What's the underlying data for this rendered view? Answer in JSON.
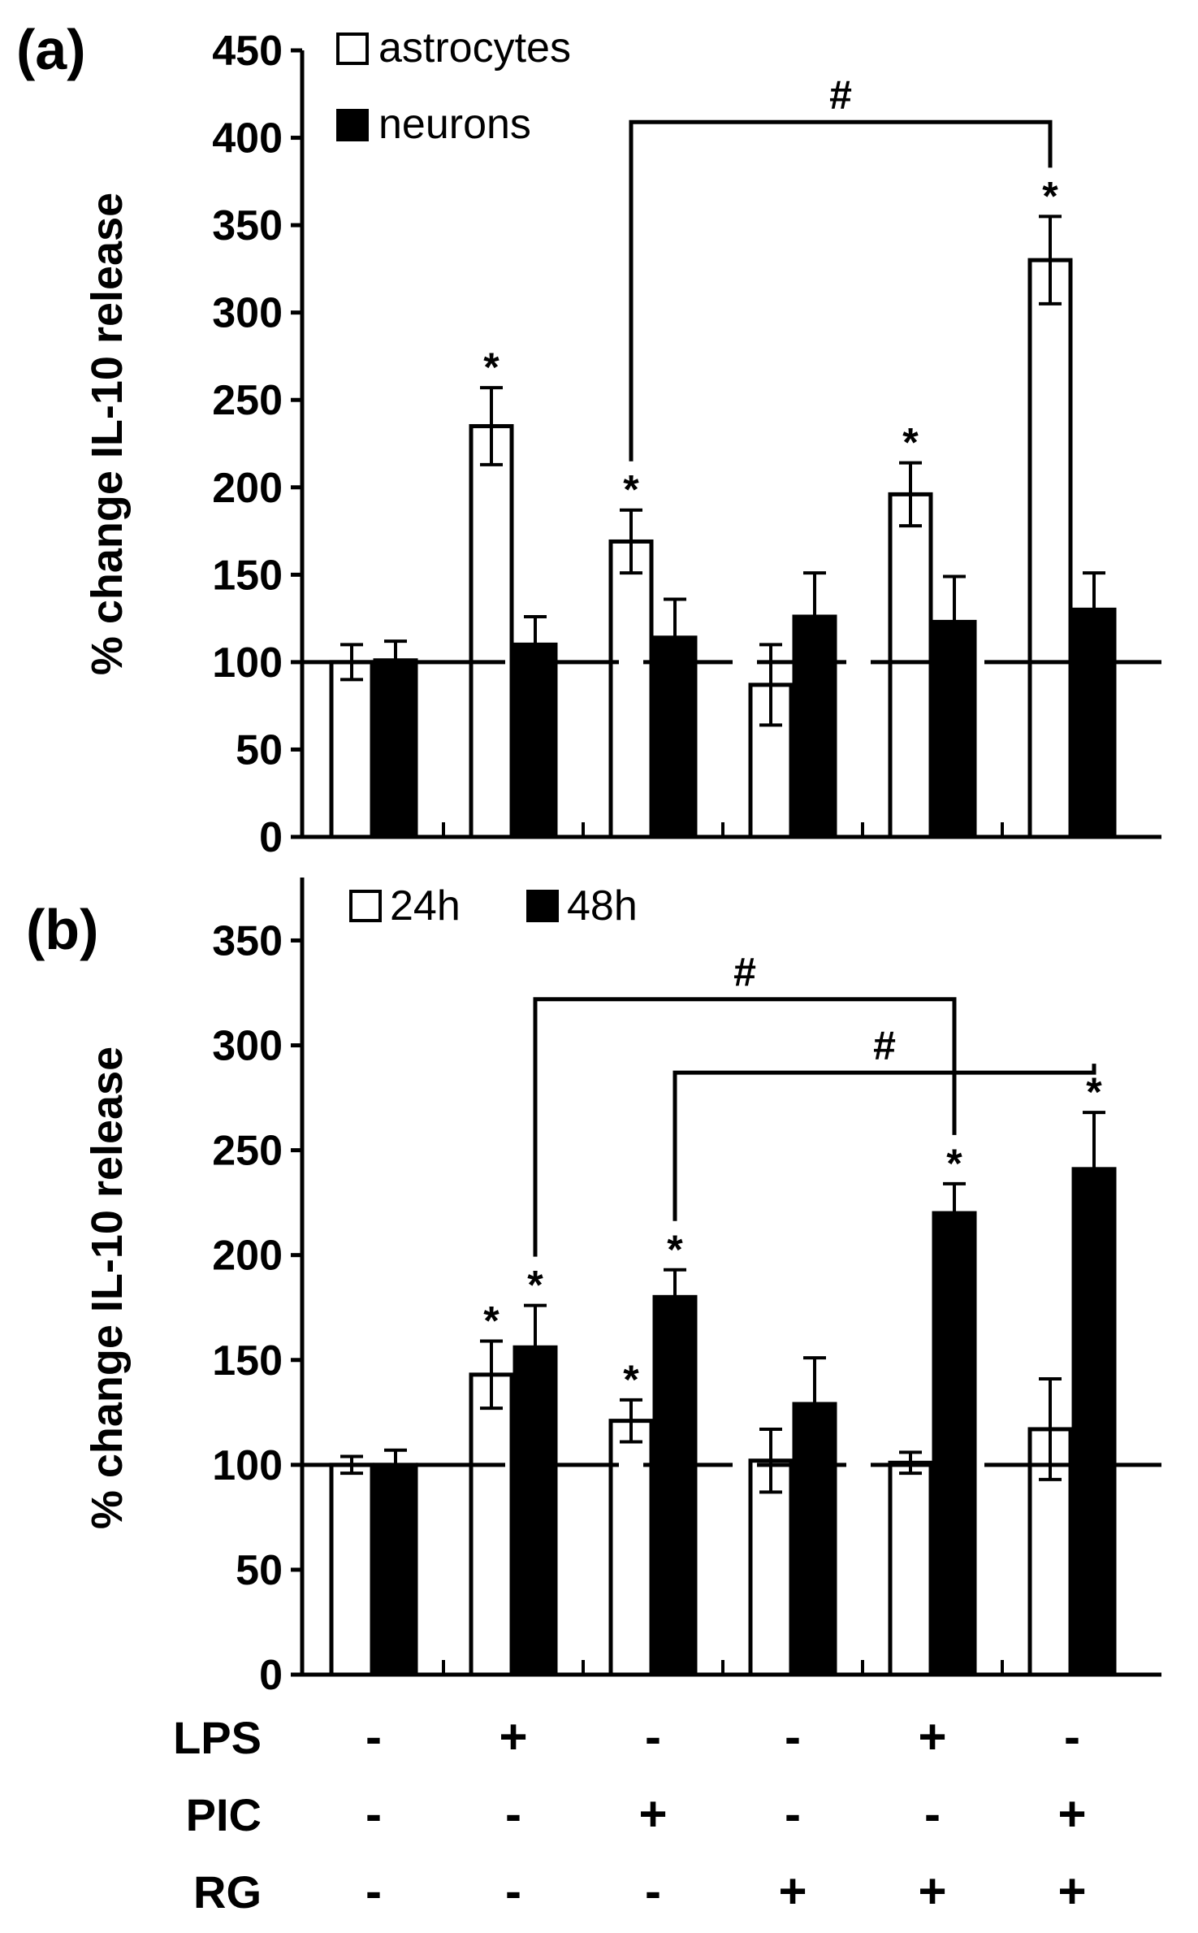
{
  "panels": [
    {
      "id": "a",
      "label": "(a)",
      "ylabel": "% change IL-10 release",
      "legend": [
        {
          "label": "astrocytes",
          "fill": "#ffffff"
        },
        {
          "label": "neurons",
          "fill": "#000000"
        }
      ]
    },
    {
      "id": "b",
      "label": "(b)",
      "ylabel": "% change IL-10 release",
      "legend": [
        {
          "label": "24h",
          "fill": "#ffffff"
        },
        {
          "label": "48h",
          "fill": "#000000"
        }
      ]
    }
  ],
  "conditions": {
    "rows": [
      {
        "label": "LPS",
        "signs": [
          "-",
          "+",
          "-",
          "-",
          "+",
          "-"
        ]
      },
      {
        "label": "PIC",
        "signs": [
          "-",
          "-",
          "+",
          "-",
          "-",
          "+"
        ]
      },
      {
        "label": "RG",
        "signs": [
          "-",
          "-",
          "-",
          "+",
          "+",
          "+"
        ]
      }
    ]
  },
  "chart_data": [
    {
      "panel": "a",
      "type": "bar",
      "title": "",
      "xlabel": "",
      "ylabel": "% change IL-10 release",
      "ylim": [
        0,
        450
      ],
      "yticks": [
        0,
        50,
        100,
        150,
        200,
        250,
        300,
        350,
        400,
        450
      ],
      "grid": false,
      "legend_position": "top-left",
      "reference_line": 100,
      "groups": 6,
      "series": [
        {
          "name": "astrocytes",
          "color": "#ffffff",
          "values": [
            100,
            235,
            169,
            87,
            196,
            330
          ],
          "errors": [
            10,
            22,
            18,
            23,
            18,
            25
          ],
          "sig": [
            "",
            "*",
            "*",
            "",
            "*",
            "*"
          ]
        },
        {
          "name": "neurons",
          "color": "#000000",
          "values": [
            101,
            110,
            114,
            126,
            123,
            130
          ],
          "errors": [
            11,
            16,
            22,
            25,
            26,
            21
          ],
          "sig": [
            "",
            "",
            "",
            "",
            "",
            ""
          ]
        }
      ],
      "brackets": [
        {
          "from": {
            "group": 2,
            "series": 0
          },
          "to": {
            "group": 5,
            "series": 0
          },
          "label": "#",
          "y": 409
        }
      ]
    },
    {
      "panel": "b",
      "type": "bar",
      "title": "",
      "xlabel": "",
      "ylabel": "% change IL-10 release",
      "ylim": [
        0,
        380
      ],
      "yticks": [
        0,
        50,
        100,
        150,
        200,
        250,
        300,
        350
      ],
      "grid": false,
      "legend_position": "top-left",
      "reference_line": 100,
      "groups": 6,
      "series": [
        {
          "name": "24h",
          "color": "#ffffff",
          "values": [
            100,
            143,
            121,
            102,
            101,
            117
          ],
          "errors": [
            4,
            16,
            10,
            15,
            5,
            24
          ],
          "sig": [
            "",
            "*",
            "*",
            "",
            "",
            ""
          ]
        },
        {
          "name": "48h",
          "color": "#000000",
          "values": [
            100,
            156,
            180,
            129,
            220,
            241
          ],
          "errors": [
            7,
            20,
            13,
            22,
            14,
            27
          ],
          "sig": [
            "",
            "*",
            "*",
            "",
            "*",
            "*"
          ]
        }
      ],
      "brackets": [
        {
          "from": {
            "group": 1,
            "series": 1
          },
          "to": {
            "group": 4,
            "series": 1
          },
          "label": "#",
          "y": 322
        },
        {
          "from": {
            "group": 2,
            "series": 1
          },
          "to": {
            "group": 5,
            "series": 1
          },
          "label": "#",
          "y": 287
        }
      ]
    }
  ]
}
